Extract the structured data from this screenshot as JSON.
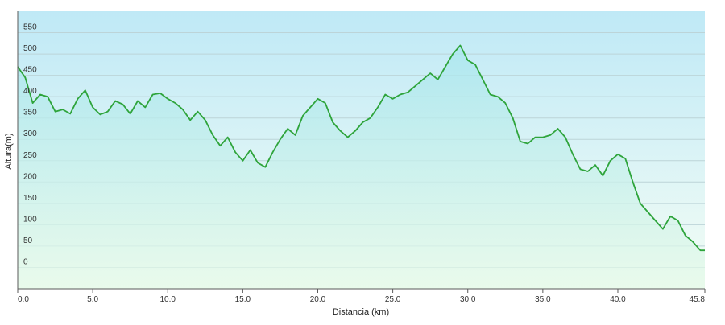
{
  "chart_data": {
    "type": "area",
    "xlabel": "Distancia  (km)",
    "ylabel": "Altura(m)",
    "xlim": [
      0,
      45.8
    ],
    "ylim": [
      -50,
      600
    ],
    "grid": true,
    "colors": {
      "line": "#2ea43b",
      "fill_top": "#a8e6ee",
      "fill_bottom": "#e6fae8",
      "plot_top": "#bfe9f6",
      "plot_bottom": "#f4fdf5",
      "grid": "#bcd4d8",
      "axis": "#5a5a5a"
    },
    "x_ticks": [
      {
        "value": 0,
        "label": "0.0"
      },
      {
        "value": 5,
        "label": "5.0"
      },
      {
        "value": 10,
        "label": "10.0"
      },
      {
        "value": 15,
        "label": "15.0"
      },
      {
        "value": 20,
        "label": "20.0"
      },
      {
        "value": 25,
        "label": "25.0"
      },
      {
        "value": 30,
        "label": "30.0"
      },
      {
        "value": 35,
        "label": "35.0"
      },
      {
        "value": 40,
        "label": "40.0"
      },
      {
        "value": 45.8,
        "label": "45.8"
      }
    ],
    "y_ticks": [
      {
        "value": 0,
        "label": "0"
      },
      {
        "value": 50,
        "label": "50"
      },
      {
        "value": 100,
        "label": "100"
      },
      {
        "value": 150,
        "label": "150"
      },
      {
        "value": 200,
        "label": "200"
      },
      {
        "value": 250,
        "label": "250"
      },
      {
        "value": 300,
        "label": "300"
      },
      {
        "value": 350,
        "label": "350"
      },
      {
        "value": 400,
        "label": "400"
      },
      {
        "value": 450,
        "label": "450"
      },
      {
        "value": 500,
        "label": "500"
      },
      {
        "value": 550,
        "label": "550"
      }
    ],
    "series": [
      {
        "x": [
          0,
          0.5,
          1.0,
          1.5,
          2.0,
          2.5,
          3.0,
          3.5,
          4.0,
          4.5,
          5.0,
          5.5,
          6.0,
          6.5,
          7.0,
          7.5,
          8.0,
          8.5,
          9.0,
          9.5,
          10.0,
          10.5,
          11.0,
          11.5,
          12.0,
          12.5,
          13.0,
          13.5,
          14.0,
          14.5,
          15.0,
          15.5,
          16.0,
          16.5,
          17.0,
          17.5,
          18.0,
          18.5,
          19.0,
          19.5,
          20.0,
          20.5,
          21.0,
          21.5,
          22.0,
          22.5,
          23.0,
          23.5,
          24.0,
          24.5,
          25.0,
          25.5,
          26.0,
          26.5,
          27.0,
          27.5,
          28.0,
          28.5,
          29.0,
          29.5,
          30.0,
          30.5,
          31.0,
          31.5,
          32.0,
          32.5,
          33.0,
          33.5,
          34.0,
          34.5,
          35.0,
          35.5,
          36.0,
          36.5,
          37.0,
          37.5,
          38.0,
          38.5,
          39.0,
          39.5,
          40.0,
          40.5,
          41.0,
          41.5,
          42.0,
          42.5,
          43.0,
          43.5,
          44.0,
          44.5,
          45.0,
          45.5,
          45.8
        ],
        "y": [
          470,
          445,
          385,
          405,
          400,
          365,
          370,
          360,
          395,
          415,
          375,
          358,
          365,
          390,
          382,
          360,
          390,
          375,
          405,
          408,
          395,
          385,
          370,
          345,
          365,
          345,
          310,
          285,
          305,
          270,
          250,
          275,
          245,
          235,
          270,
          300,
          325,
          310,
          355,
          375,
          395,
          385,
          340,
          320,
          305,
          320,
          340,
          350,
          375,
          405,
          395,
          405,
          410,
          425,
          440,
          455,
          440,
          470,
          500,
          520,
          485,
          475,
          440,
          405,
          400,
          385,
          350,
          295,
          290,
          305,
          305,
          310,
          325,
          305,
          265,
          230,
          225,
          240,
          215,
          250,
          265,
          255,
          200,
          150,
          130,
          110,
          90,
          120,
          110,
          75,
          60,
          40,
          40
        ]
      }
    ]
  }
}
